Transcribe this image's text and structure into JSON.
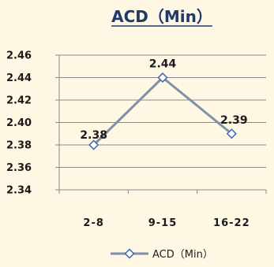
{
  "chart_data": {
    "type": "line",
    "title": "ACD（Min）",
    "categories": [
      "2-8",
      "9-15",
      "16-22"
    ],
    "series": [
      {
        "name": "ACD（Min）",
        "values": [
          2.38,
          2.44,
          2.39
        ],
        "color": "#8090a8"
      }
    ],
    "data_labels": [
      "2.38",
      "2.44",
      "2.39"
    ],
    "y_ticks": [
      "2.46",
      "2.44",
      "2.42",
      "2.40",
      "2.38",
      "2.36",
      "2.34"
    ],
    "ylim": [
      2.34,
      2.46
    ],
    "grid": true,
    "legend": "bottom",
    "marker": "diamond"
  },
  "colors": {
    "background": "#fdf7e4",
    "title": "#1f3a68",
    "grid": "#8a8a8a",
    "line": "#8090a8",
    "marker_stroke": "#3d64b0",
    "marker_fill": "#ffffff"
  }
}
